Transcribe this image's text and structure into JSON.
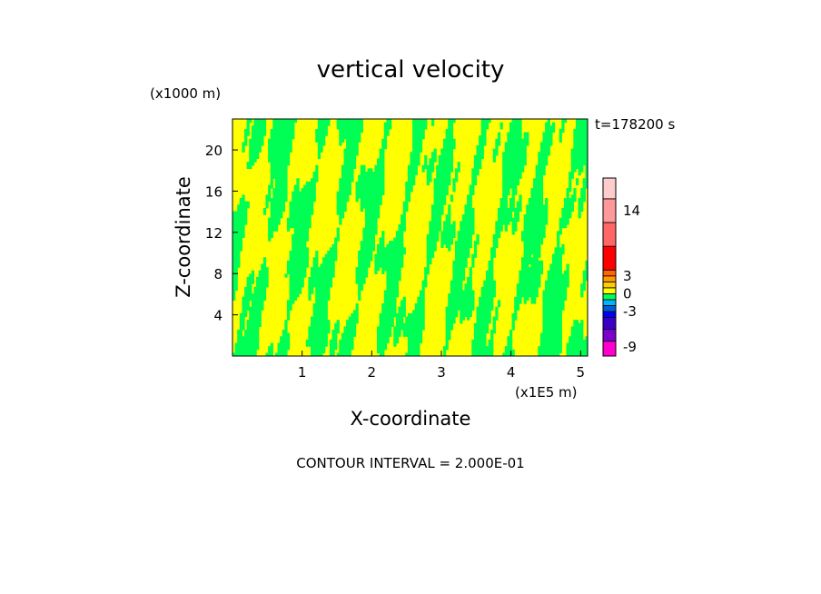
{
  "chart_data": {
    "type": "contour",
    "title": "vertical velocity",
    "xlabel": "X-coordinate",
    "ylabel": "Z-coordinate",
    "x_unit": "(x1E5 m)",
    "y_unit": "(x1000 m)",
    "time_label": "t=178200 s",
    "footer": "CONTOUR INTERVAL = 2.000E-01",
    "xlim": [
      0,
      5.1
    ],
    "ylim": [
      0,
      23
    ],
    "xticks": [
      1,
      2,
      3,
      4,
      5
    ],
    "yticks": [
      4,
      8,
      12,
      16,
      20
    ],
    "field_colors": {
      "positive": "#ffff00",
      "negative": "#00ff55",
      "outline": "#000000"
    },
    "colorbar": {
      "tick_labels": [
        "14",
        "3",
        "0",
        "-3",
        "-9"
      ],
      "tick_values": [
        14,
        3,
        0,
        -3,
        -9
      ],
      "range": [
        -10.5,
        19.5
      ],
      "bands": [
        {
          "from": -10.5,
          "to": -8,
          "color": "#ff00cc"
        },
        {
          "from": -8,
          "to": -6,
          "color": "#7a00cc"
        },
        {
          "from": -6,
          "to": -4,
          "color": "#3a00c8"
        },
        {
          "from": -4,
          "to": -3,
          "color": "#0000ff"
        },
        {
          "from": -3,
          "to": -2,
          "color": "#005fd8"
        },
        {
          "from": -2,
          "to": -1,
          "color": "#00b4ff"
        },
        {
          "from": -1,
          "to": 0,
          "color": "#00ff55"
        },
        {
          "from": 0,
          "to": 1,
          "color": "#ffff00"
        },
        {
          "from": 1,
          "to": 2,
          "color": "#ffcc00"
        },
        {
          "from": 2,
          "to": 3,
          "color": "#ff9900"
        },
        {
          "from": 3,
          "to": 4,
          "color": "#ff6600"
        },
        {
          "from": 4,
          "to": 8,
          "color": "#ff0000"
        },
        {
          "from": 8,
          "to": 12,
          "color": "#ff6666"
        },
        {
          "from": 12,
          "to": 16,
          "color": "#ff9999"
        },
        {
          "from": 16,
          "to": 19.5,
          "color": "#ffcccc"
        }
      ]
    }
  }
}
